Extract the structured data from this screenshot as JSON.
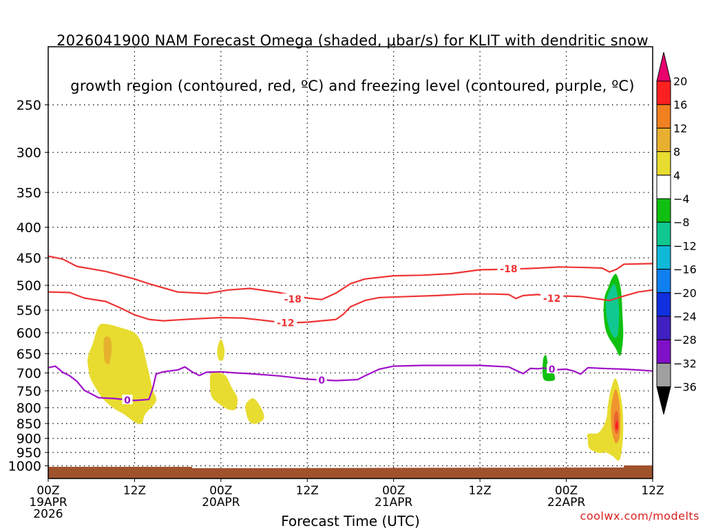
{
  "header": {
    "title_line1": "2026041900 NAM Forecast Omega (shaded, μbar/s) for KLIT with dendritic snow",
    "title_line2": "growth region (contoured, red, ºC) and freezing level (contoured, purple, ºC)"
  },
  "credit": "coolwx.com/modelts",
  "chart_data": {
    "type": "heatmap",
    "xlabel": "Forecast Time (UTC)",
    "ylabel": "",
    "x_range_hours": [
      0,
      84
    ],
    "y_log_scale": true,
    "y_range_mb": [
      200,
      1050
    ],
    "grid": true,
    "y_ticks": [
      250,
      300,
      350,
      400,
      450,
      500,
      550,
      600,
      650,
      700,
      750,
      800,
      850,
      900,
      950,
      1000
    ],
    "x_ticks": [
      {
        "hour": 0,
        "line1": "00Z",
        "line2": "19APR",
        "line3": "2026"
      },
      {
        "hour": 12,
        "line1": "12Z",
        "line2": "",
        "line3": ""
      },
      {
        "hour": 24,
        "line1": "00Z",
        "line2": "20APR",
        "line3": ""
      },
      {
        "hour": 36,
        "line1": "12Z",
        "line2": "",
        "line3": ""
      },
      {
        "hour": 48,
        "line1": "00Z",
        "line2": "21APR",
        "line3": ""
      },
      {
        "hour": 60,
        "line1": "12Z",
        "line2": "",
        "line3": ""
      },
      {
        "hour": 72,
        "line1": "00Z",
        "line2": "22APR",
        "line3": ""
      },
      {
        "hour": 84,
        "line1": "12Z",
        "line2": "",
        "line3": ""
      }
    ],
    "colorbar": {
      "labels": [
        "20",
        "16",
        "12",
        "8",
        "4",
        "−4",
        "−8",
        "−12",
        "−16",
        "−20",
        "−24",
        "−28",
        "−32",
        "−36"
      ],
      "colors": [
        "#ff2020",
        "#f08020",
        "#e8b030",
        "#e8dc30",
        "#ffffff",
        "#10c010",
        "#10c890",
        "#10b8d8",
        "#1080f0",
        "#1030e0",
        "#4020c0",
        "#8010c8",
        "#a0a0a0"
      ],
      "top_arrow_color": "#e8006e",
      "bottom_arrow_color": "#000000"
    },
    "contours": [
      {
        "name": "-18",
        "color": "#ee3333",
        "points": [
          [
            0,
            447
          ],
          [
            2,
            452
          ],
          [
            4,
            465
          ],
          [
            8,
            474
          ],
          [
            12,
            488
          ],
          [
            14,
            497
          ],
          [
            18,
            513
          ],
          [
            22,
            516
          ],
          [
            25,
            509
          ],
          [
            28,
            506
          ],
          [
            32,
            514
          ],
          [
            36,
            525
          ],
          [
            38,
            528
          ],
          [
            40,
            515
          ],
          [
            42,
            497
          ],
          [
            44,
            488
          ],
          [
            48,
            482
          ],
          [
            52,
            481
          ],
          [
            56,
            478
          ],
          [
            60,
            471
          ],
          [
            64,
            470
          ],
          [
            68,
            468
          ],
          [
            71,
            466
          ],
          [
            75,
            467
          ],
          [
            77,
            468
          ],
          [
            78,
            475
          ],
          [
            79,
            470
          ],
          [
            80,
            461
          ],
          [
            84,
            460
          ]
        ],
        "labels": [
          {
            "x": 34,
            "y": 527,
            "text": "-18"
          },
          {
            "x": 64,
            "y": 469,
            "text": "-18"
          }
        ]
      },
      {
        "name": "-12",
        "color": "#ee3333",
        "points": [
          [
            0,
            513
          ],
          [
            3,
            514
          ],
          [
            5,
            525
          ],
          [
            8,
            532
          ],
          [
            10,
            545
          ],
          [
            12,
            560
          ],
          [
            14,
            570
          ],
          [
            16,
            573
          ],
          [
            20,
            569
          ],
          [
            24,
            566
          ],
          [
            27,
            567
          ],
          [
            30,
            572
          ],
          [
            33,
            578
          ],
          [
            36,
            576
          ],
          [
            40,
            570
          ],
          [
            41,
            559
          ],
          [
            42,
            543
          ],
          [
            44,
            530
          ],
          [
            46,
            524
          ],
          [
            50,
            522
          ],
          [
            54,
            520
          ],
          [
            58,
            517
          ],
          [
            62,
            517
          ],
          [
            64,
            518
          ],
          [
            65,
            526
          ],
          [
            66,
            520
          ],
          [
            68,
            518
          ],
          [
            70,
            522
          ],
          [
            72,
            521
          ],
          [
            74,
            522
          ],
          [
            76,
            526
          ],
          [
            78,
            530
          ],
          [
            80,
            521
          ],
          [
            82,
            513
          ],
          [
            84,
            509
          ]
        ],
        "labels": [
          {
            "x": 33,
            "y": 577,
            "text": "-12"
          },
          {
            "x": 70,
            "y": 526,
            "text": "-12"
          }
        ]
      },
      {
        "name": "0",
        "color": "#a010c8",
        "points": [
          [
            0,
            686
          ],
          [
            1,
            682
          ],
          [
            2,
            698
          ],
          [
            3,
            708
          ],
          [
            4,
            723
          ],
          [
            5,
            748
          ],
          [
            7,
            770
          ],
          [
            9,
            772
          ],
          [
            12,
            778
          ],
          [
            14,
            775
          ],
          [
            14.5,
            745
          ],
          [
            15,
            703
          ],
          [
            16,
            697
          ],
          [
            18,
            692
          ],
          [
            19,
            684
          ],
          [
            20,
            697
          ],
          [
            21,
            707
          ],
          [
            22,
            698
          ],
          [
            24,
            697
          ],
          [
            26,
            700
          ],
          [
            28,
            702
          ],
          [
            32,
            708
          ],
          [
            36,
            717
          ],
          [
            40,
            721
          ],
          [
            43,
            718
          ],
          [
            44,
            708
          ],
          [
            46,
            690
          ],
          [
            48,
            682
          ],
          [
            52,
            680
          ],
          [
            56,
            680
          ],
          [
            60,
            680
          ],
          [
            62,
            682
          ],
          [
            64,
            684
          ],
          [
            65,
            693
          ],
          [
            66,
            702
          ],
          [
            67,
            688
          ],
          [
            68,
            689
          ],
          [
            69,
            687
          ],
          [
            70,
            693
          ],
          [
            71,
            691
          ],
          [
            72,
            690
          ],
          [
            73,
            695
          ],
          [
            74,
            703
          ],
          [
            75,
            686
          ],
          [
            77,
            688
          ],
          [
            80,
            690
          ],
          [
            82,
            692
          ],
          [
            84,
            695
          ]
        ],
        "labels": [
          {
            "x": 11,
            "y": 777,
            "text": "0"
          },
          {
            "x": 38,
            "y": 720,
            "text": "0"
          },
          {
            "x": 70,
            "y": 690,
            "text": "0"
          }
        ]
      }
    ],
    "shaded_regions": [
      {
        "value": 6,
        "color": "#e8dc30",
        "points": [
          [
            5.5,
            660
          ],
          [
            6.2,
            625
          ],
          [
            7,
            585
          ],
          [
            8,
            580
          ],
          [
            10,
            588
          ],
          [
            12,
            600
          ],
          [
            13,
            625
          ],
          [
            13.5,
            660
          ],
          [
            14,
            700
          ],
          [
            14.5,
            745
          ],
          [
            15,
            780
          ],
          [
            13.5,
            820
          ],
          [
            13,
            850
          ],
          [
            12,
            845
          ],
          [
            10.5,
            820
          ],
          [
            9,
            800
          ],
          [
            7.5,
            770
          ],
          [
            6,
            720
          ],
          [
            5.6,
            690
          ]
        ]
      },
      {
        "value": 9,
        "color": "#e6b22e",
        "points": [
          [
            7.8,
            612
          ],
          [
            8.6,
            612
          ],
          [
            8.8,
            640
          ],
          [
            8.5,
            675
          ],
          [
            7.9,
            670
          ],
          [
            7.7,
            640
          ]
        ]
      },
      {
        "value": 6,
        "color": "#e8dc30",
        "points": [
          [
            23.5,
            640
          ],
          [
            24,
            615
          ],
          [
            24.5,
            640
          ],
          [
            24.3,
            665
          ],
          [
            23.7,
            665
          ]
        ]
      },
      {
        "value": 6,
        "color": "#e8dc30",
        "points": [
          [
            22.7,
            700
          ],
          [
            24.5,
            705
          ],
          [
            25.5,
            740
          ],
          [
            26.3,
            772
          ],
          [
            26,
            805
          ],
          [
            25,
            805
          ],
          [
            24,
            792
          ],
          [
            22.8,
            770
          ],
          [
            22.5,
            740
          ]
        ]
      },
      {
        "value": 6,
        "color": "#e8dc30",
        "points": [
          [
            27.5,
            788
          ],
          [
            28.5,
            772
          ],
          [
            29.5,
            797
          ],
          [
            30,
            832
          ],
          [
            29,
            850
          ],
          [
            28,
            845
          ],
          [
            27.5,
            815
          ]
        ]
      },
      {
        "value": -6,
        "color": "#10c010",
        "points": [
          [
            68.8,
            663
          ],
          [
            69.2,
            655
          ],
          [
            69.6,
            690
          ],
          [
            70.3,
            703
          ],
          [
            70.3,
            720
          ],
          [
            69,
            720
          ],
          [
            68.7,
            700
          ]
        ]
      },
      {
        "value": -6,
        "color": "#10c010",
        "points": [
          [
            77.3,
            525
          ],
          [
            77.8,
            505
          ],
          [
            78.4,
            485
          ],
          [
            79,
            480
          ],
          [
            79.6,
            510
          ],
          [
            79.8,
            560
          ],
          [
            79.9,
            610
          ],
          [
            79.5,
            655
          ],
          [
            78.8,
            635
          ],
          [
            77.6,
            600
          ],
          [
            77.2,
            560
          ]
        ]
      },
      {
        "value": -10,
        "color": "#10c890",
        "points": [
          [
            77.5,
            535
          ],
          [
            78.2,
            505
          ],
          [
            78.8,
            500
          ],
          [
            79.3,
            540
          ],
          [
            79.2,
            600
          ],
          [
            78.6,
            610
          ],
          [
            77.8,
            580
          ]
        ]
      },
      {
        "value": 6,
        "color": "#e8dc30",
        "points": [
          [
            75,
            885
          ],
          [
            76.5,
            880
          ],
          [
            77.5,
            840
          ],
          [
            77.8,
            790
          ],
          [
            78.2,
            745
          ],
          [
            78.8,
            715
          ],
          [
            79.3,
            740
          ],
          [
            79.8,
            800
          ],
          [
            79.9,
            880
          ],
          [
            79.6,
            960
          ],
          [
            79.2,
            980
          ],
          [
            78.5,
            965
          ],
          [
            77.5,
            950
          ],
          [
            76.5,
            952
          ],
          [
            75.2,
            935
          ],
          [
            75,
            905
          ]
        ]
      },
      {
        "value": 10,
        "color": "#f09430",
        "points": [
          [
            78.4,
            775
          ],
          [
            78.9,
            745
          ],
          [
            79.4,
            790
          ],
          [
            79.5,
            860
          ],
          [
            79.3,
            905
          ],
          [
            78.8,
            915
          ],
          [
            78.3,
            870
          ],
          [
            78.2,
            815
          ]
        ]
      },
      {
        "value": 14,
        "color": "#e8642e",
        "points": [
          [
            78.7,
            820
          ],
          [
            79.1,
            812
          ],
          [
            79.3,
            850
          ],
          [
            79.2,
            880
          ],
          [
            78.8,
            880
          ],
          [
            78.6,
            850
          ]
        ]
      },
      {
        "value": 18,
        "color": "#ff2020",
        "points": [
          [
            78.9,
            845
          ],
          [
            79.1,
            842
          ],
          [
            79.2,
            862
          ],
          [
            79,
            872
          ],
          [
            78.8,
            862
          ]
        ]
      }
    ]
  }
}
